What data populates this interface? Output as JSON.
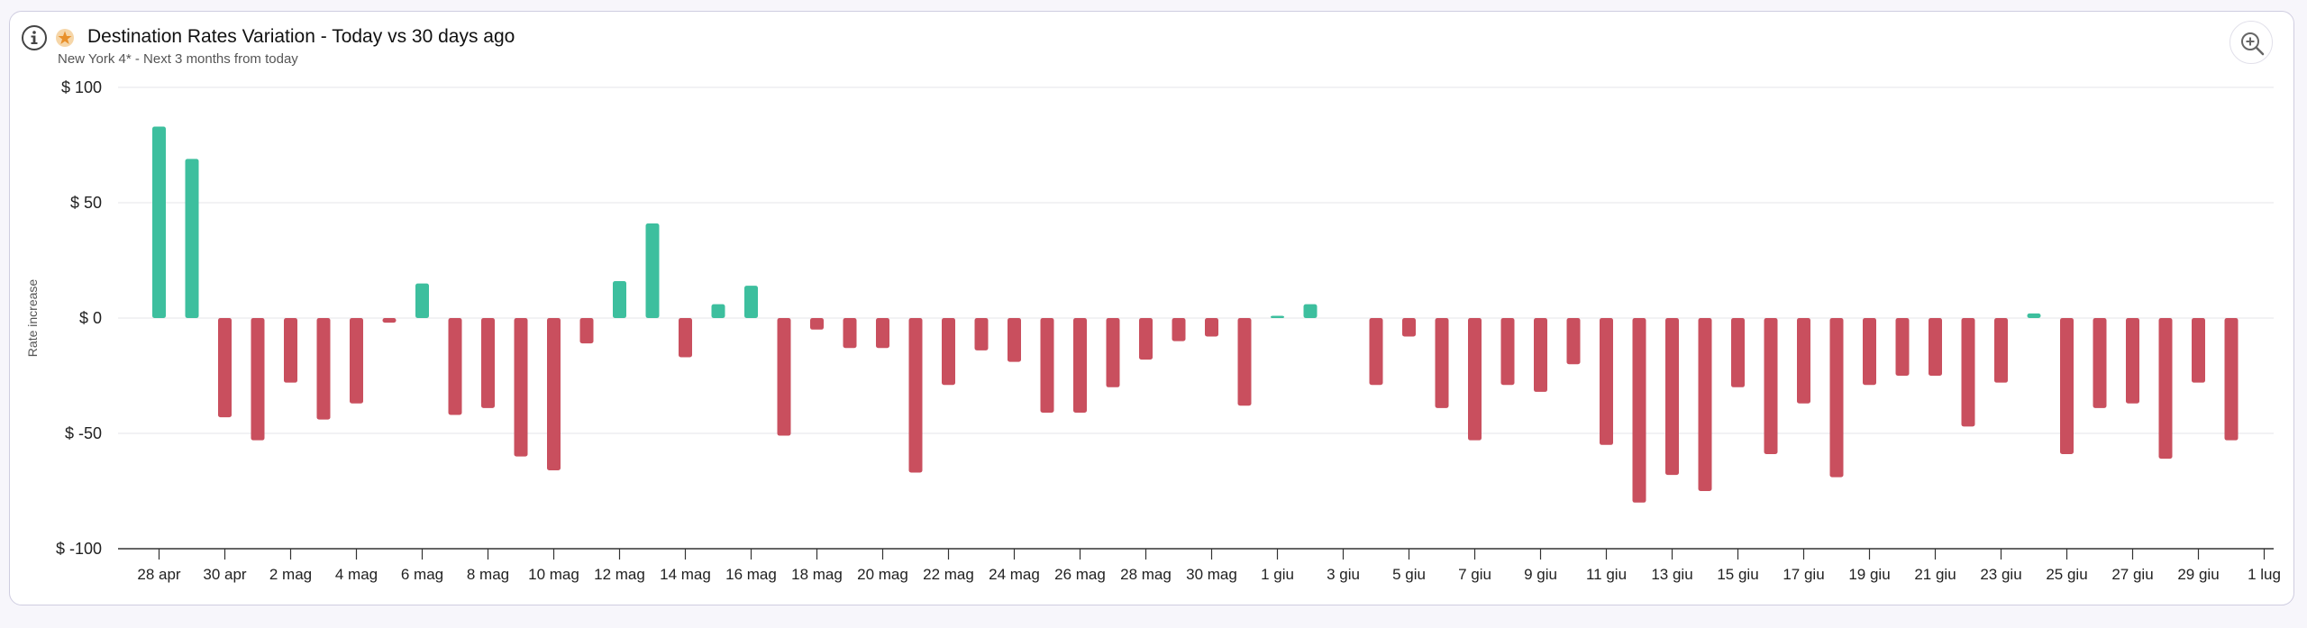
{
  "header": {
    "title": "Destination Rates Variation - Today vs 30 days ago",
    "subtitle": "New York 4* - Next 3 months from today"
  },
  "icons": {
    "info": "info-icon",
    "title_badge": "star-icon",
    "zoom": "zoom-in-icon"
  },
  "colors": {
    "positive": "#3dbf9e",
    "negative": "#c94f5e",
    "grid": "#e4e4e8",
    "axis": "#333333"
  },
  "chart_data": {
    "type": "bar",
    "ylabel": "Rate increase",
    "xlabel": "",
    "ylim": [
      -100,
      100
    ],
    "y_ticks": [
      "$ 100",
      "$ 50",
      "$ 0",
      "$ -50",
      "$ -100"
    ],
    "y_tick_values": [
      100,
      50,
      0,
      -50,
      -100
    ],
    "x_tick_labels": [
      "28 apr",
      "30 apr",
      "2 mag",
      "4 mag",
      "6 mag",
      "8 mag",
      "10 mag",
      "12 mag",
      "14 mag",
      "16 mag",
      "18 mag",
      "20 mag",
      "22 mag",
      "24 mag",
      "26 mag",
      "28 mag",
      "30 mag",
      "1 giu",
      "3 giu",
      "5 giu",
      "7 giu",
      "9 giu",
      "11 giu",
      "13 giu",
      "15 giu",
      "17 giu",
      "19 giu",
      "21 giu",
      "23 giu",
      "25 giu",
      "27 giu",
      "29 giu",
      "1 lug"
    ],
    "categories": [
      "28 apr",
      "29 apr",
      "30 apr",
      "1 mag",
      "2 mag",
      "3 mag",
      "4 mag",
      "5 mag",
      "6 mag",
      "7 mag",
      "8 mag",
      "9 mag",
      "10 mag",
      "11 mag",
      "12 mag",
      "13 mag",
      "14 mag",
      "15 mag",
      "16 mag",
      "17 mag",
      "18 mag",
      "19 mag",
      "20 mag",
      "21 mag",
      "22 mag",
      "23 mag",
      "24 mag",
      "25 mag",
      "26 mag",
      "27 mag",
      "28 mag",
      "29 mag",
      "30 mag",
      "31 mag",
      "1 giu",
      "2 giu",
      "3 giu",
      "4 giu",
      "5 giu",
      "6 giu",
      "7 giu",
      "8 giu",
      "9 giu",
      "10 giu",
      "11 giu",
      "12 giu",
      "13 giu",
      "14 giu",
      "15 giu",
      "16 giu",
      "17 giu",
      "18 giu",
      "19 giu",
      "20 giu",
      "21 giu",
      "22 giu",
      "23 giu",
      "24 giu",
      "25 giu",
      "26 giu",
      "27 giu",
      "28 giu",
      "29 giu",
      "30 giu"
    ],
    "values": [
      83,
      69,
      -43,
      -53,
      -28,
      -44,
      -37,
      -2,
      15,
      -42,
      -39,
      -60,
      -66,
      -11,
      16,
      41,
      -17,
      6,
      14,
      -51,
      -5,
      -13,
      -13,
      -67,
      -29,
      -14,
      -19,
      -41,
      -41,
      -30,
      -18,
      -10,
      -8,
      -38,
      1,
      6,
      0,
      -29,
      -8,
      -39,
      -53,
      -29,
      -32,
      -20,
      -55,
      -80,
      -68,
      -75,
      -30,
      -59,
      -37,
      -69,
      -29,
      -25,
      -25,
      -47,
      -28,
      2,
      -59,
      -39,
      -37,
      -61,
      -28,
      -53
    ],
    "grid": true,
    "legend": "none"
  }
}
